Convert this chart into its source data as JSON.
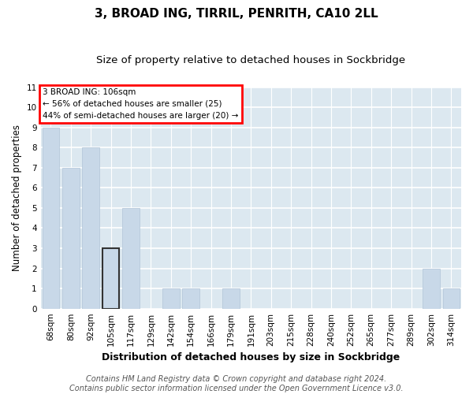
{
  "title": "3, BROAD ING, TIRRIL, PENRITH, CA10 2LL",
  "subtitle": "Size of property relative to detached houses in Sockbridge",
  "xlabel": "Distribution of detached houses by size in Sockbridge",
  "ylabel": "Number of detached properties",
  "categories": [
    "68sqm",
    "80sqm",
    "92sqm",
    "105sqm",
    "117sqm",
    "129sqm",
    "142sqm",
    "154sqm",
    "166sqm",
    "179sqm",
    "191sqm",
    "203sqm",
    "215sqm",
    "228sqm",
    "240sqm",
    "252sqm",
    "265sqm",
    "277sqm",
    "289sqm",
    "302sqm",
    "314sqm"
  ],
  "values": [
    9,
    7,
    8,
    3,
    5,
    0,
    1,
    1,
    0,
    1,
    0,
    0,
    0,
    0,
    0,
    0,
    0,
    0,
    0,
    2,
    1
  ],
  "bar_color": "#c8d8e8",
  "bar_edge_color": "#b0c4d8",
  "highlight_bar_index": 3,
  "highlight_edge_color": "#333333",
  "ylim": [
    0,
    11
  ],
  "yticks": [
    0,
    1,
    2,
    3,
    4,
    5,
    6,
    7,
    8,
    9,
    10,
    11
  ],
  "annotation_box_text": "3 BROAD ING: 106sqm\n← 56% of detached houses are smaller (25)\n44% of semi-detached houses are larger (20) →",
  "footer_text": "Contains HM Land Registry data © Crown copyright and database right 2024.\nContains public sector information licensed under the Open Government Licence v3.0.",
  "bg_color": "#ffffff",
  "plot_bg_color": "#dce8f0",
  "grid_color": "#ffffff",
  "title_fontsize": 11,
  "subtitle_fontsize": 9.5,
  "xlabel_fontsize": 9,
  "ylabel_fontsize": 8.5,
  "tick_fontsize": 7.5,
  "footer_fontsize": 7
}
